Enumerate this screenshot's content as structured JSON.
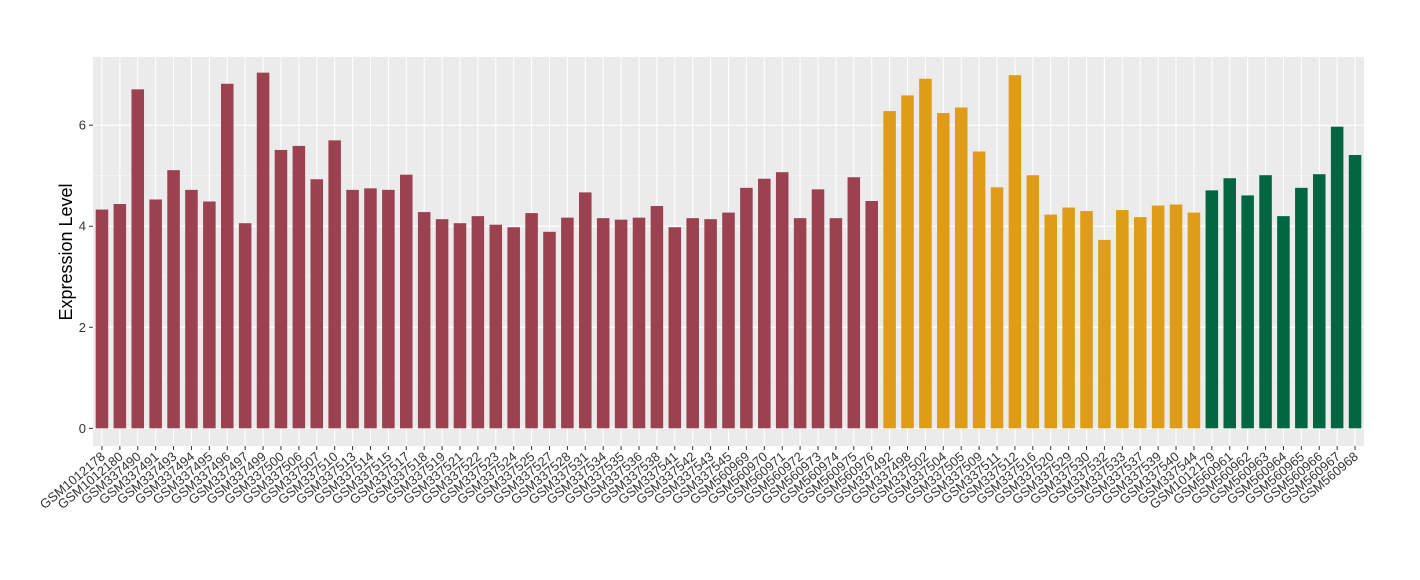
{
  "chart_data": {
    "type": "bar",
    "ylabel": "Expression Level",
    "xlabel": "",
    "ylim": [
      -0.35,
      7.35
    ],
    "yticks": [
      0,
      2,
      4,
      6
    ],
    "grid": true,
    "legend": "none",
    "panel_background": "#ebebeb",
    "colors": [
      "#9b4150",
      "#de9c17",
      "#006641"
    ],
    "categories": [
      "GSM1012178",
      "GSM1012180",
      "GSM337490",
      "GSM337491",
      "GSM337493",
      "GSM337494",
      "GSM337495",
      "GSM337496",
      "GSM337497",
      "GSM337499",
      "GSM337500",
      "GSM337506",
      "GSM337507",
      "GSM337510",
      "GSM337513",
      "GSM337514",
      "GSM337515",
      "GSM337517",
      "GSM337518",
      "GSM337519",
      "GSM337521",
      "GSM337522",
      "GSM337523",
      "GSM337524",
      "GSM337525",
      "GSM337527",
      "GSM337528",
      "GSM337531",
      "GSM337534",
      "GSM337535",
      "GSM337536",
      "GSM337538",
      "GSM337541",
      "GSM337542",
      "GSM337543",
      "GSM337545",
      "GSM560969",
      "GSM560970",
      "GSM560971",
      "GSM560972",
      "GSM560973",
      "GSM560974",
      "GSM560975",
      "GSM560976",
      "GSM337492",
      "GSM337498",
      "GSM337502",
      "GSM337504",
      "GSM337505",
      "GSM337509",
      "GSM337511",
      "GSM337512",
      "GSM337516",
      "GSM337520",
      "GSM337529",
      "GSM337530",
      "GSM337532",
      "GSM337533",
      "GSM337537",
      "GSM337539",
      "GSM337540",
      "GSM337544",
      "GSM1012179",
      "GSM560961",
      "GSM560962",
      "GSM560963",
      "GSM560964",
      "GSM560965",
      "GSM560966",
      "GSM560967",
      "GSM560968"
    ],
    "values": [
      4.33,
      4.44,
      6.71,
      4.53,
      5.11,
      4.72,
      4.49,
      6.82,
      4.06,
      7.04,
      5.51,
      5.59,
      4.93,
      5.7,
      4.72,
      4.75,
      4.72,
      5.02,
      4.28,
      4.14,
      4.06,
      4.2,
      4.03,
      3.98,
      4.26,
      3.89,
      4.17,
      4.67,
      4.16,
      4.13,
      4.17,
      4.4,
      3.98,
      4.16,
      4.14,
      4.27,
      4.76,
      4.94,
      5.07,
      4.16,
      4.73,
      4.16,
      4.97,
      4.5,
      6.28,
      6.59,
      6.92,
      6.24,
      6.35,
      5.48,
      4.77,
      6.99,
      5.01,
      4.23,
      4.37,
      4.3,
      3.73,
      4.32,
      4.18,
      4.41,
      4.43,
      4.27,
      4.71,
      4.95,
      4.61,
      5.01,
      4.2,
      4.76,
      5.03,
      5.97,
      5.41
    ],
    "groups": [
      0,
      0,
      0,
      0,
      0,
      0,
      0,
      0,
      0,
      0,
      0,
      0,
      0,
      0,
      0,
      0,
      0,
      0,
      0,
      0,
      0,
      0,
      0,
      0,
      0,
      0,
      0,
      0,
      0,
      0,
      0,
      0,
      0,
      0,
      0,
      0,
      0,
      0,
      0,
      0,
      0,
      0,
      0,
      0,
      1,
      1,
      1,
      1,
      1,
      1,
      1,
      1,
      1,
      1,
      1,
      1,
      1,
      1,
      1,
      1,
      1,
      1,
      2,
      2,
      2,
      2,
      2,
      2,
      2,
      2,
      2
    ]
  }
}
